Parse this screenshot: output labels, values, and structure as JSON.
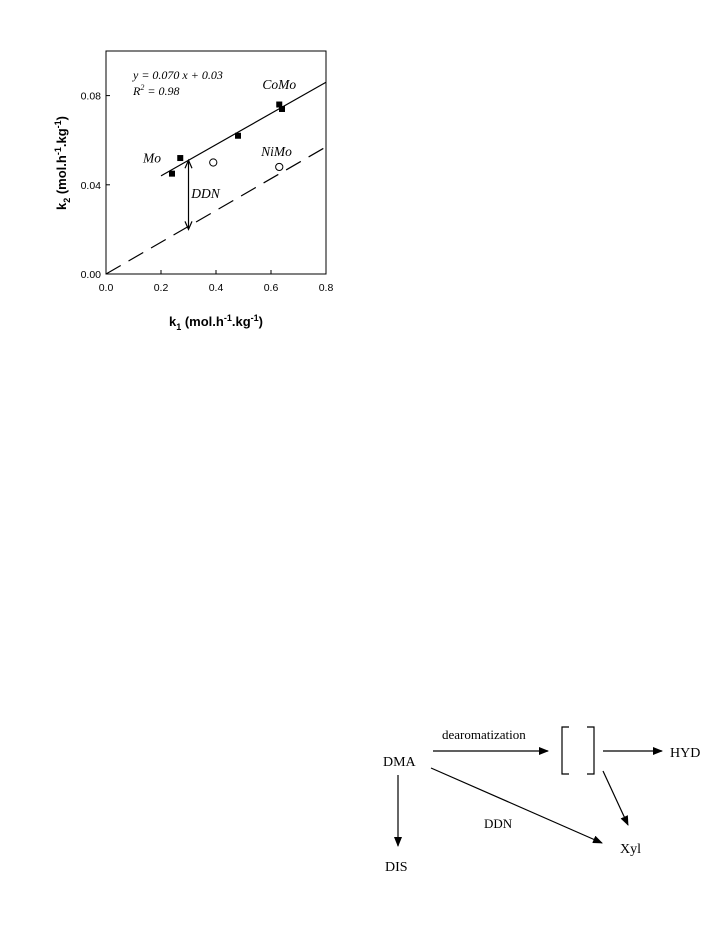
{
  "chart_data": {
    "type": "scatter",
    "title": "",
    "xlim": [
      0,
      0.8
    ],
    "ylim": [
      0,
      0.1
    ],
    "xticks": [
      "0.0",
      "0.2",
      "0.4",
      "0.6",
      "0.8"
    ],
    "yticks": [
      "0.00",
      "0.04",
      "0.08"
    ],
    "xlabel": {
      "base": "k",
      "sub": "1",
      "unit": " (mol.h",
      "exp1": "-1",
      "mid": ".kg",
      "exp2": "-1",
      "end": ")"
    },
    "ylabel": {
      "base": "k",
      "sub": "2",
      "unit": " (mol.h",
      "exp1": "-1",
      "mid": ".kg",
      "exp2": "-1",
      "end": ")"
    },
    "grid": false,
    "series": [
      {
        "marker": "filled-square",
        "points": [
          {
            "x": 0.24,
            "y": 0.045
          },
          {
            "x": 0.27,
            "y": 0.052
          },
          {
            "x": 0.48,
            "y": 0.062
          },
          {
            "x": 0.63,
            "y": 0.076
          },
          {
            "x": 0.64,
            "y": 0.074
          }
        ]
      },
      {
        "marker": "open-circle",
        "points": [
          {
            "x": 0.39,
            "y": 0.05
          },
          {
            "x": 0.63,
            "y": 0.048
          }
        ]
      }
    ],
    "lines": [
      {
        "style": "solid",
        "x": [
          0.2,
          0.8
        ],
        "y": [
          0.044,
          0.086
        ]
      },
      {
        "style": "dashed",
        "x": [
          0.0,
          0.8
        ],
        "y": [
          0.0,
          0.057
        ]
      }
    ],
    "equation": {
      "line1": "y = 0.070 x + 0.03",
      "r_base": "R",
      "r_exp": "2",
      "r_rest": " = 0.98"
    },
    "annotations": [
      {
        "text": "CoMo",
        "x": 0.63,
        "y": 0.083
      },
      {
        "text": "Mo",
        "x": 0.2,
        "y": 0.05
      },
      {
        "text": "NiMo",
        "x": 0.62,
        "y": 0.053
      },
      {
        "text": "DDN",
        "x": 0.31,
        "y": 0.034
      }
    ],
    "double_arrow": {
      "x": 0.3,
      "y": [
        0.02,
        0.051
      ]
    }
  },
  "scheme": {
    "nodes": {
      "dma": "DMA",
      "hyd": "HYD",
      "dis": "DIS",
      "xyl": "Xyl"
    },
    "edge_labels": {
      "dearomatization": "dearomatization",
      "ddn": "DDN"
    }
  }
}
